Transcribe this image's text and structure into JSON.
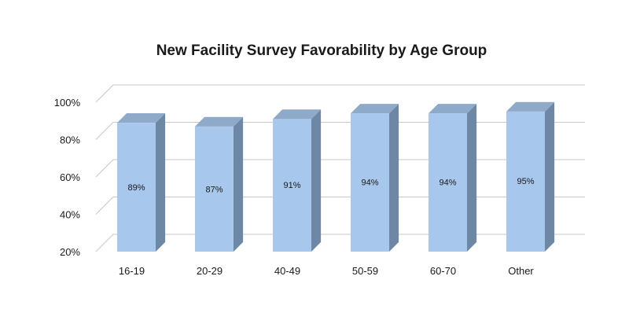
{
  "chart_data": {
    "type": "bar",
    "title": "New Facility Survey Favorability by Age Group",
    "categories": [
      "16-19",
      "20-29",
      "40-49",
      "50-59",
      "60-70",
      "Other"
    ],
    "values": [
      89,
      87,
      91,
      94,
      94,
      95
    ],
    "data_labels": [
      "89%",
      "87%",
      "91%",
      "94%",
      "94%",
      "95%"
    ],
    "y_ticks": [
      20,
      40,
      60,
      80,
      100
    ],
    "y_tick_labels": [
      "20%",
      "40%",
      "60%",
      "80%",
      "100%"
    ],
    "ylim": [
      20,
      100
    ],
    "grid": true,
    "legend": "none",
    "style": "3d-column"
  },
  "colors": {
    "bar_front": "#a7c7ec",
    "bar_side": "#6e87a5",
    "bar_top": "#8fa9c8",
    "grid": "#c8c8c8"
  }
}
